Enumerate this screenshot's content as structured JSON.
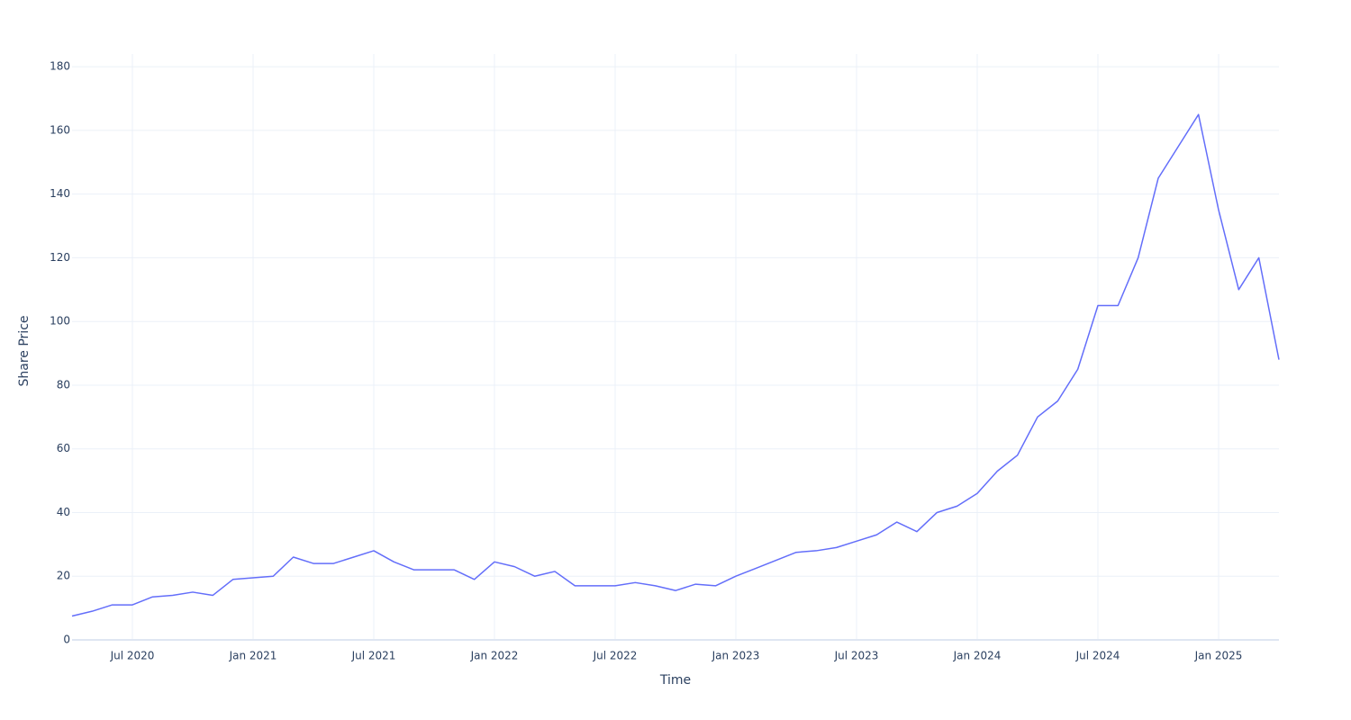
{
  "chart_data": {
    "type": "line",
    "xlabel": "Time",
    "ylabel": "Share Price",
    "color": "#636efa",
    "grid": true,
    "x": [
      "2020-04",
      "2020-05",
      "2020-06",
      "2020-07",
      "2020-08",
      "2020-09",
      "2020-10",
      "2020-11",
      "2020-12",
      "2021-01",
      "2021-02",
      "2021-03",
      "2021-04",
      "2021-05",
      "2021-06",
      "2021-07",
      "2021-08",
      "2021-09",
      "2021-10",
      "2021-11",
      "2021-12",
      "2022-01",
      "2022-02",
      "2022-03",
      "2022-04",
      "2022-05",
      "2022-06",
      "2022-07",
      "2022-08",
      "2022-09",
      "2022-10",
      "2022-11",
      "2022-12",
      "2023-01",
      "2023-02",
      "2023-03",
      "2023-04",
      "2023-05",
      "2023-06",
      "2023-07",
      "2023-08",
      "2023-09",
      "2023-10",
      "2023-11",
      "2023-12",
      "2024-01",
      "2024-02",
      "2024-03",
      "2024-04",
      "2024-05",
      "2024-06",
      "2024-07",
      "2024-08",
      "2024-09",
      "2024-10",
      "2024-11",
      "2024-12",
      "2025-01",
      "2025-02",
      "2025-03",
      "2025-04"
    ],
    "values": [
      7.5,
      9,
      11,
      11,
      13.5,
      14,
      15,
      14,
      19,
      19.5,
      20,
      26,
      24,
      24,
      26,
      28,
      24.5,
      22,
      22,
      22,
      19,
      24.5,
      23,
      20,
      21.5,
      17,
      17,
      17,
      18,
      17,
      15.5,
      17.5,
      17,
      20,
      22.5,
      25,
      27.5,
      28,
      29,
      31,
      33,
      37,
      34,
      40,
      42,
      46,
      53,
      58,
      70,
      75,
      85,
      105,
      105,
      120,
      145,
      155,
      165,
      135,
      110,
      120,
      88
    ],
    "xlim": [
      "2020-04",
      "2025-04"
    ],
    "xticks": [
      {
        "value": "2020-07",
        "label": "Jul 2020"
      },
      {
        "value": "2021-01",
        "label": "Jan 2021"
      },
      {
        "value": "2021-07",
        "label": "Jul 2021"
      },
      {
        "value": "2022-01",
        "label": "Jan 2022"
      },
      {
        "value": "2022-07",
        "label": "Jul 2022"
      },
      {
        "value": "2023-01",
        "label": "Jan 2023"
      },
      {
        "value": "2023-07",
        "label": "Jul 2023"
      },
      {
        "value": "2024-01",
        "label": "Jan 2024"
      },
      {
        "value": "2024-07",
        "label": "Jul 2024"
      },
      {
        "value": "2025-01",
        "label": "Jan 2025"
      }
    ],
    "ylim": [
      0,
      184
    ],
    "yticks": [
      0,
      20,
      40,
      60,
      80,
      100,
      120,
      140,
      160,
      180
    ]
  }
}
